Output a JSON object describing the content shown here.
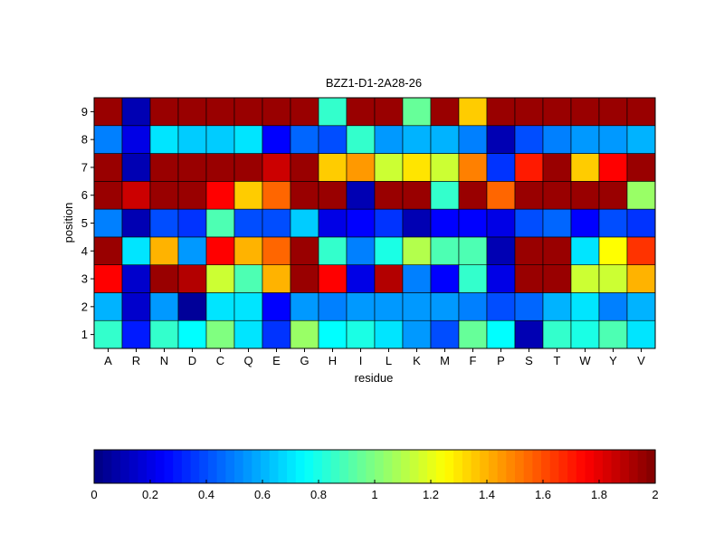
{
  "chart_data": {
    "type": "heatmap",
    "title": "BZZ1-D1-2A28-26",
    "xlabel": "residue",
    "ylabel": "position",
    "x_categories": [
      "A",
      "R",
      "N",
      "D",
      "C",
      "Q",
      "E",
      "G",
      "H",
      "I",
      "L",
      "K",
      "M",
      "F",
      "P",
      "S",
      "T",
      "W",
      "Y",
      "V"
    ],
    "y_categories": [
      "1",
      "2",
      "3",
      "4",
      "5",
      "6",
      "7",
      "8",
      "9"
    ],
    "values": [
      [
        0.85,
        0.3,
        0.85,
        0.75,
        1.0,
        0.7,
        0.35,
        1.05,
        0.75,
        0.8,
        0.7,
        0.55,
        0.4,
        0.95,
        0.75,
        0.1,
        0.85,
        0.8,
        0.9,
        0.7
      ],
      [
        0.6,
        0.15,
        0.55,
        0.05,
        0.7,
        0.7,
        0.25,
        0.55,
        0.5,
        0.55,
        0.55,
        0.55,
        0.55,
        0.5,
        0.4,
        0.45,
        0.6,
        0.7,
        0.5,
        0.6
      ],
      [
        1.75,
        0.15,
        1.95,
        1.9,
        1.15,
        0.9,
        1.4,
        1.95,
        1.75,
        0.2,
        1.9,
        0.5,
        0.25,
        0.85,
        0.2,
        1.95,
        1.95,
        1.15,
        1.15,
        1.4
      ],
      [
        1.95,
        0.7,
        1.4,
        0.55,
        1.75,
        1.4,
        1.55,
        1.95,
        0.85,
        0.5,
        0.8,
        1.1,
        0.9,
        0.9,
        0.1,
        1.95,
        1.95,
        0.7,
        1.25,
        1.65
      ],
      [
        0.5,
        0.1,
        0.4,
        0.35,
        0.9,
        0.4,
        0.4,
        0.65,
        0.2,
        0.25,
        0.35,
        0.1,
        0.25,
        0.25,
        0.2,
        0.4,
        0.45,
        0.25,
        0.4,
        0.35
      ],
      [
        1.95,
        1.85,
        1.95,
        1.95,
        1.75,
        1.35,
        1.55,
        1.95,
        1.95,
        0.1,
        1.95,
        1.95,
        0.85,
        1.95,
        1.55,
        1.95,
        1.95,
        1.95,
        1.95,
        1.05
      ],
      [
        1.95,
        0.1,
        1.95,
        1.95,
        1.95,
        1.95,
        1.85,
        1.95,
        1.35,
        1.45,
        1.15,
        1.3,
        1.15,
        1.5,
        0.35,
        1.7,
        1.95,
        1.35,
        1.75,
        1.95
      ],
      [
        0.5,
        0.2,
        0.7,
        0.65,
        0.65,
        0.7,
        0.25,
        0.45,
        0.4,
        0.85,
        0.55,
        0.6,
        0.6,
        0.5,
        0.1,
        0.4,
        0.5,
        0.55,
        0.55,
        0.6
      ],
      [
        1.95,
        0.1,
        1.95,
        1.95,
        1.95,
        1.95,
        1.95,
        1.95,
        0.85,
        1.95,
        1.95,
        0.95,
        1.95,
        1.35,
        1.95,
        1.95,
        1.95,
        1.95,
        1.95,
        1.95
      ]
    ],
    "colorbar": {
      "colormap": "jet",
      "range": [
        0,
        2
      ],
      "ticks": [
        "0",
        "0.2",
        "0.4",
        "0.6",
        "0.8",
        "1",
        "1.2",
        "1.4",
        "1.6",
        "1.8",
        "2"
      ],
      "orientation": "horizontal",
      "placement": "bottom"
    },
    "grid": false
  }
}
